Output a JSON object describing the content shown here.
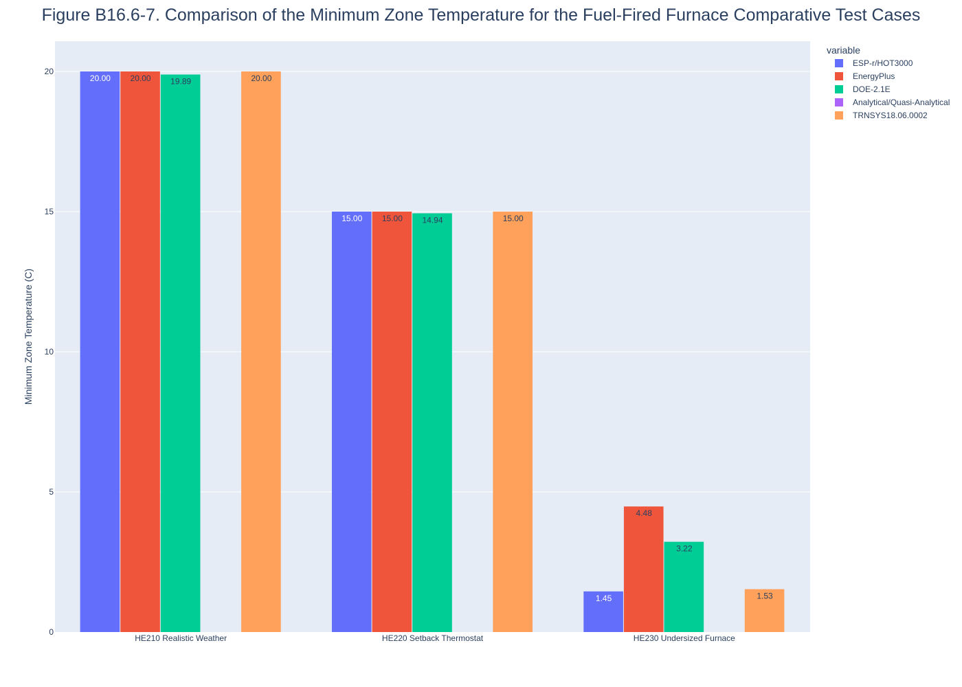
{
  "chart_data": {
    "type": "bar",
    "title": "Figure B16.6-7. Comparison of the Minimum Zone Temperature for the Fuel-Fired Furnace Comparative Test Cases",
    "xlabel": "",
    "ylabel": "Minimum Zone Temperature (C)",
    "ylim": [
      0,
      21
    ],
    "yticks": [
      0,
      5,
      10,
      15,
      20
    ],
    "grid": true,
    "legend_title": "variable",
    "legend_position": "top-right",
    "categories": [
      "HE210 Realistic Weather",
      "HE220 Setback Thermostat",
      "HE230 Undersized Furnace"
    ],
    "series": [
      {
        "name": "ESP-r/HOT3000",
        "color": "#636efa",
        "values": [
          20.0,
          15.0,
          1.45
        ],
        "labels": [
          "20.00",
          "15.00",
          "1.45"
        ]
      },
      {
        "name": "EnergyPlus",
        "color": "#ef553b",
        "values": [
          20.0,
          15.0,
          4.48
        ],
        "labels": [
          "20.00",
          "15.00",
          "4.48"
        ]
      },
      {
        "name": "DOE-2.1E",
        "color": "#00cc96",
        "values": [
          19.89,
          14.94,
          3.22
        ],
        "labels": [
          "19.89",
          "14.94",
          "3.22"
        ]
      },
      {
        "name": "Analytical/Quasi-Analytical",
        "color": "#ab63fa",
        "values": [
          null,
          null,
          null
        ],
        "labels": [
          "",
          "",
          ""
        ]
      },
      {
        "name": "TRNSYS18.06.0002",
        "color": "#ffa15a",
        "values": [
          20.0,
          15.0,
          1.53
        ],
        "labels": [
          "20.00",
          "15.00",
          "1.53"
        ]
      }
    ]
  }
}
